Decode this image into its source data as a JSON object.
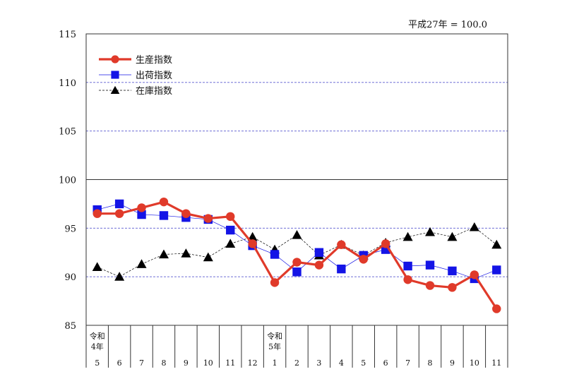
{
  "chart_data": {
    "type": "line",
    "base_note": "平成27年 = 100.0",
    "ylim": [
      85,
      115
    ],
    "yticks": [
      85,
      90,
      95,
      100,
      105,
      110,
      115
    ],
    "categories": [
      {
        "month": "5",
        "era": [
          "令和",
          "4年"
        ]
      },
      {
        "month": "6"
      },
      {
        "month": "7"
      },
      {
        "month": "8"
      },
      {
        "month": "9"
      },
      {
        "month": "10"
      },
      {
        "month": "11"
      },
      {
        "month": "12"
      },
      {
        "month": "1",
        "era": [
          "令和",
          "5年"
        ]
      },
      {
        "month": "2"
      },
      {
        "month": "3"
      },
      {
        "month": "4"
      },
      {
        "month": "5"
      },
      {
        "month": "6"
      },
      {
        "month": "7"
      },
      {
        "month": "8"
      },
      {
        "month": "9"
      },
      {
        "month": "10"
      },
      {
        "month": "11"
      }
    ],
    "series": [
      {
        "name": "生産指数",
        "color": "#e03a2a",
        "marker": "circle",
        "line": "solid-thick",
        "values": [
          96.5,
          96.5,
          97.1,
          97.7,
          96.5,
          96.0,
          96.2,
          93.4,
          89.4,
          91.5,
          91.2,
          93.3,
          91.8,
          93.4,
          89.7,
          89.1,
          88.9,
          90.2,
          86.7
        ]
      },
      {
        "name": "出荷指数",
        "color": "#1414e6",
        "marker": "square",
        "line": "solid-thin",
        "values": [
          96.9,
          97.5,
          96.4,
          96.3,
          96.1,
          95.9,
          94.8,
          93.2,
          92.3,
          90.5,
          92.5,
          90.8,
          92.2,
          92.8,
          91.1,
          91.2,
          90.6,
          89.8,
          90.7
        ]
      },
      {
        "name": "在庫指数",
        "color": "#000000",
        "marker": "triangle",
        "line": "dashed",
        "values": [
          91.0,
          90.0,
          91.3,
          92.3,
          92.4,
          92.0,
          93.4,
          94.1,
          92.8,
          94.3,
          92.2,
          93.3,
          92.2,
          93.5,
          94.1,
          94.6,
          94.1,
          95.1,
          93.3
        ]
      }
    ],
    "grid": {
      "major_solid": [
        100
      ],
      "dashed": [
        90,
        95,
        105,
        110
      ]
    },
    "legend_position": "top-left"
  }
}
